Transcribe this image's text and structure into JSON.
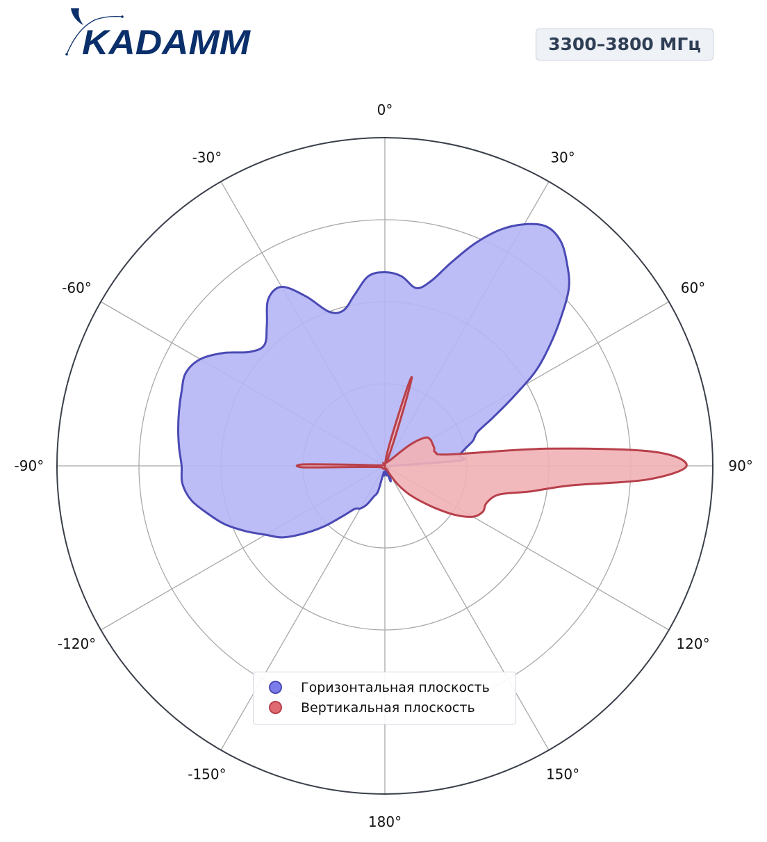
{
  "brand": {
    "logo_text": "KADAMM",
    "color": "#0a2f6b"
  },
  "frequency_label": "3300–3800 МГц",
  "legend": {
    "items": [
      {
        "label": "Горизонтальная плоскость",
        "series": 0
      },
      {
        "label": "Вертикальная плоскость",
        "series": 1
      }
    ]
  },
  "chart_data": {
    "type": "polar",
    "title": "",
    "angle_unit": "deg",
    "angle_zero": "top",
    "angle_direction": "clockwise",
    "angle_ticks": [
      0,
      30,
      60,
      90,
      120,
      150,
      180,
      -150,
      -120,
      -90,
      -60,
      -30
    ],
    "angle_tick_labels": [
      "0°",
      "30°",
      "60°",
      "90°",
      "120°",
      "150°",
      "180°",
      "-150°",
      "-120°",
      "-90°",
      "-60°",
      "-30°"
    ],
    "radial_range": [
      0,
      1
    ],
    "radial_gridlines": [
      0.25,
      0.5,
      0.75
    ],
    "radial_tick_labels_shown": false,
    "grid": true,
    "legend_position": "bottom-center",
    "series": [
      {
        "name": "Горизонтальная плоскость",
        "color": "#7b7bea",
        "fill_color": "#b5b5f5",
        "line_color": "#4a4ab5",
        "points": [
          [
            0,
            0.59
          ],
          [
            5,
            0.58
          ],
          [
            10,
            0.55
          ],
          [
            14,
            0.58
          ],
          [
            18,
            0.65
          ],
          [
            22,
            0.73
          ],
          [
            26,
            0.8
          ],
          [
            30,
            0.85
          ],
          [
            34,
            0.88
          ],
          [
            38,
            0.87
          ],
          [
            42,
            0.83
          ],
          [
            46,
            0.78
          ],
          [
            50,
            0.7
          ],
          [
            54,
            0.62
          ],
          [
            58,
            0.54
          ],
          [
            62,
            0.44
          ],
          [
            66,
            0.36
          ],
          [
            70,
            0.3
          ],
          [
            74,
            0.28
          ],
          [
            78,
            0.25
          ],
          [
            82,
            0.23
          ],
          [
            86,
            0.23
          ],
          [
            90,
            0.02
          ],
          [
            95,
            0.02
          ],
          [
            100,
            0.01
          ],
          [
            120,
            0.01
          ],
          [
            150,
            0.03
          ],
          [
            160,
            0.05
          ],
          [
            165,
            0.01
          ],
          [
            170,
            0.03
          ],
          [
            175,
            0.02
          ],
          [
            180,
            0.02
          ],
          [
            185,
            0.03
          ],
          [
            190,
            0.02
          ],
          [
            195,
            0.08
          ],
          [
            200,
            0.1
          ],
          [
            205,
            0.13
          ],
          [
            210,
            0.15
          ],
          [
            215,
            0.16
          ],
          [
            220,
            0.2
          ],
          [
            225,
            0.26
          ],
          [
            230,
            0.32
          ],
          [
            235,
            0.38
          ],
          [
            240,
            0.42
          ],
          [
            245,
            0.47
          ],
          [
            250,
            0.52
          ],
          [
            255,
            0.56
          ],
          [
            260,
            0.6
          ],
          [
            265,
            0.62
          ],
          [
            270,
            0.62
          ],
          [
            275,
            0.63
          ],
          [
            280,
            0.64
          ],
          [
            285,
            0.65
          ],
          [
            290,
            0.66
          ],
          [
            295,
            0.67
          ],
          [
            300,
            0.65
          ],
          [
            305,
            0.6
          ],
          [
            310,
            0.54
          ],
          [
            315,
            0.52
          ],
          [
            320,
            0.56
          ],
          [
            325,
            0.62
          ],
          [
            330,
            0.63
          ],
          [
            335,
            0.57
          ],
          [
            340,
            0.5
          ],
          [
            345,
            0.49
          ],
          [
            350,
            0.53
          ],
          [
            355,
            0.58
          ]
        ]
      },
      {
        "name": "Вертикальная плоскость",
        "color": "#e06a72",
        "fill_color": "#f1b1b6",
        "line_color": "#b8404b",
        "points": [
          [
            0,
            0.0
          ],
          [
            10,
            0.04
          ],
          [
            14,
            0.12
          ],
          [
            16,
            0.25
          ],
          [
            17,
            0.28
          ],
          [
            18,
            0.2
          ],
          [
            20,
            0.08
          ],
          [
            25,
            0.02
          ],
          [
            40,
            0.02
          ],
          [
            50,
            0.1
          ],
          [
            55,
            0.15
          ],
          [
            60,
            0.16
          ],
          [
            65,
            0.16
          ],
          [
            70,
            0.16
          ],
          [
            75,
            0.16
          ],
          [
            80,
            0.2
          ],
          [
            84,
            0.5
          ],
          [
            87,
            0.82
          ],
          [
            90,
            0.92
          ],
          [
            93,
            0.8
          ],
          [
            96,
            0.57
          ],
          [
            100,
            0.45
          ],
          [
            104,
            0.36
          ],
          [
            110,
            0.33
          ],
          [
            115,
            0.33
          ],
          [
            120,
            0.31
          ],
          [
            125,
            0.26
          ],
          [
            130,
            0.2
          ],
          [
            135,
            0.15
          ],
          [
            140,
            0.11
          ],
          [
            145,
            0.07
          ],
          [
            150,
            0.03
          ],
          [
            155,
            0.01
          ],
          [
            180,
            0.01
          ],
          [
            200,
            0.01
          ],
          [
            230,
            0.01
          ],
          [
            260,
            0.02
          ],
          [
            268,
            0.1
          ],
          [
            269,
            0.25
          ],
          [
            271,
            0.25
          ],
          [
            272,
            0.1
          ],
          [
            280,
            0.01
          ],
          [
            330,
            0.01
          ],
          [
            355,
            0.0
          ]
        ]
      }
    ]
  }
}
